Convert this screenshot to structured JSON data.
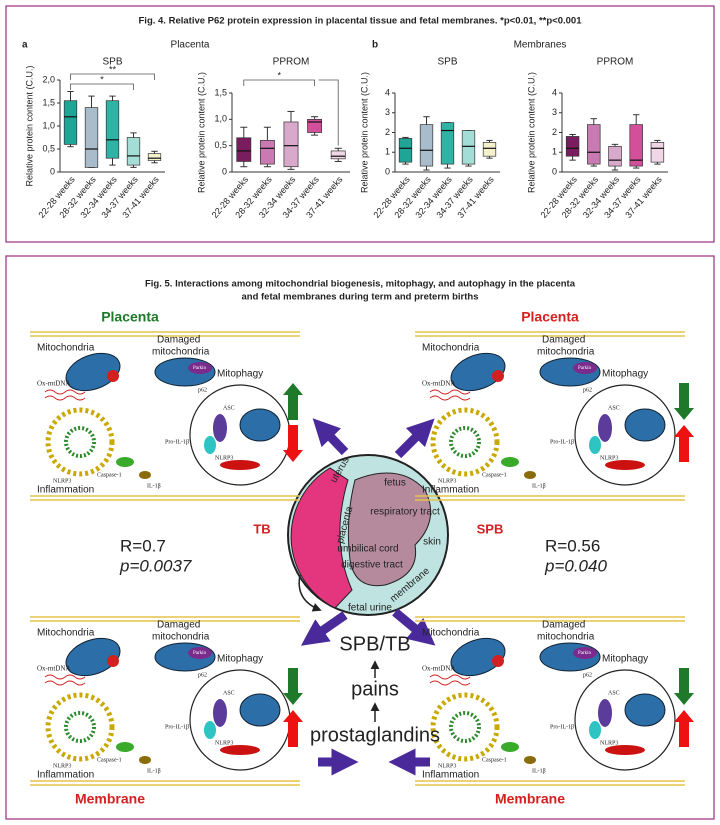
{
  "fig4": {
    "title": "Fig. 4. Relative P62 protein expression in placental tissue and fetal membranes. *p<0.01, **p<0.001",
    "panels": [
      {
        "letter": "a",
        "title": "Placenta",
        "charts": [
          {
            "type": "box",
            "title": "SPB",
            "ylabel": "Relative protein content (C.U.)",
            "categories": [
              "22-28 weeks",
              "28-32 weeks",
              "32-34 weeks",
              "34-37 weeks",
              "37-41 weeks"
            ],
            "ylim": [
              0,
              2
            ],
            "yticks": [
              0,
              {
                "value": 0.5,
                "label": "0,5"
              },
              {
                "value": 1,
                "label": "1,0"
              },
              {
                "value": 1.5,
                "label": "1,5"
              },
              {
                "value": 2,
                "label": "2,0"
              }
            ],
            "boxes": [
              {
                "color": "#1fa596",
                "min": 0.55,
                "q1": 0.6,
                "median": 1.2,
                "q3": 1.55,
                "max": 1.75
              },
              {
                "color": "#a8bccb",
                "min": 0.1,
                "q1": 0.1,
                "median": 0.5,
                "q3": 1.4,
                "max": 1.65
              },
              {
                "color": "#2fb3a4",
                "min": 0.15,
                "q1": 0.3,
                "median": 0.7,
                "q3": 1.55,
                "max": 1.65
              },
              {
                "color": "#a3ddd6",
                "min": 0.1,
                "q1": 0.15,
                "median": 0.35,
                "q3": 0.75,
                "max": 0.85
              },
              {
                "color": "#f3f0cc",
                "min": 0.2,
                "q1": 0.25,
                "median": 0.3,
                "q3": 0.4,
                "max": 0.45
              }
            ],
            "annotations": [
              "**",
              "*"
            ]
          },
          {
            "type": "box",
            "title": "PPROM",
            "ylabel": "Relative protein content (C.U.)",
            "categories": [
              "22-28 weeks",
              "28-32 weeks",
              "32-34 weeks",
              "34-37 weeks",
              "37-41 weeks"
            ],
            "ylim": [
              0,
              1.5
            ],
            "yticks": [
              0,
              {
                "value": 0.5,
                "label": "0,5"
              },
              {
                "value": 1,
                "label": "1,0"
              },
              {
                "value": 1.5,
                "label": "1,5"
              }
            ],
            "boxes": [
              {
                "color": "#7a1d5e",
                "min": 0.1,
                "q1": 0.2,
                "median": 0.4,
                "q3": 0.65,
                "max": 0.85
              },
              {
                "color": "#c97ab3",
                "min": 0.1,
                "q1": 0.15,
                "median": 0.45,
                "q3": 0.6,
                "max": 0.85
              },
              {
                "color": "#d9a9cc",
                "min": 0.05,
                "q1": 0.1,
                "median": 0.5,
                "q3": 0.95,
                "max": 1.15
              },
              {
                "color": "#d2509a",
                "min": 0.7,
                "q1": 0.75,
                "median": 0.95,
                "q3": 1,
                "max": 1.05
              },
              {
                "color": "#f1d6e7",
                "min": 0.2,
                "q1": 0.25,
                "median": 0.3,
                "q3": 0.4,
                "max": 0.45
              }
            ],
            "annotations": [
              "*"
            ]
          }
        ]
      },
      {
        "letter": "b",
        "title": "Membranes",
        "charts": [
          {
            "type": "box",
            "title": "SPB",
            "ylabel": "Relative protein content (C.U.)",
            "categories": [
              "22-28 weeks",
              "28-32 weeks",
              "32-34 weeks",
              "34-37 weeks",
              "37-41 weeks"
            ],
            "ylim": [
              0,
              4
            ],
            "yticks": [
              0,
              1,
              2,
              3,
              4
            ],
            "boxes": [
              {
                "color": "#1fa596",
                "min": 0.4,
                "q1": 0.5,
                "median": 1.2,
                "q3": 1.7,
                "max": 1.75
              },
              {
                "color": "#a8bccb",
                "min": 0.1,
                "q1": 0.3,
                "median": 1.1,
                "q3": 2.4,
                "max": 2.8
              },
              {
                "color": "#2fb3a4",
                "min": 0.2,
                "q1": 0.4,
                "median": 2.1,
                "q3": 2.5,
                "max": 2.5
              },
              {
                "color": "#a3ddd6",
                "min": 0.3,
                "q1": 0.4,
                "median": 1.3,
                "q3": 2.1,
                "max": 2.1
              },
              {
                "color": "#f3f0cc",
                "min": 0.7,
                "q1": 0.8,
                "median": 1.2,
                "q3": 1.5,
                "max": 1.6
              }
            ],
            "annotations": []
          },
          {
            "type": "box",
            "title": "PPROM",
            "ylabel": "Relative protein content (C.U.)",
            "categories": [
              "22-28 weeks",
              "28-32 weeks",
              "32-34 weeks",
              "34-37 weeks",
              "37-41 weeks"
            ],
            "ylim": [
              0,
              4
            ],
            "yticks": [
              0,
              1,
              2,
              3,
              4
            ],
            "boxes": [
              {
                "color": "#7a1d5e",
                "min": 0.6,
                "q1": 0.8,
                "median": 1.2,
                "q3": 1.8,
                "max": 1.9
              },
              {
                "color": "#c97ab3",
                "min": 0.3,
                "q1": 0.4,
                "median": 1,
                "q3": 2.4,
                "max": 2.7
              },
              {
                "color": "#d9a9cc",
                "min": 0.1,
                "q1": 0.3,
                "median": 0.6,
                "q3": 1.3,
                "max": 1.4
              },
              {
                "color": "#d2509a",
                "min": 0.2,
                "q1": 0.3,
                "median": 0.6,
                "q3": 2.4,
                "max": 2.9
              },
              {
                "color": "#f1d6e7",
                "min": 0.4,
                "q1": 0.5,
                "median": 1.2,
                "q3": 1.5,
                "max": 1.6
              }
            ],
            "annotations": []
          }
        ]
      }
    ]
  },
  "fig5": {
    "title": [
      "Fig. 5. Interactions among mitochondrial biogenesis, mitophagy, and autophagy in the placenta",
      "and fetal membranes during term and preterm births"
    ],
    "panels": [
      {
        "heading": "Placenta",
        "mitochondria": "Mitochondria",
        "damaged": [
          "Damaged",
          "mitochondria"
        ],
        "mitophagy": "Mitophagy",
        "ox_mtdna": "Ox-mtDNA",
        "inflammation": "Inflammation",
        "nlrp3": "NLRP3",
        "parkin": "Parkin",
        "p62": "p62",
        "asc": "ASC",
        "nlrp3_b": "NLRP3",
        "pro_il": "Pro-IL-1β",
        "caspase": "Caspase-1",
        "il": "IL-1β"
      },
      {
        "heading": "Placenta",
        "mitochondria": "Mitochondria",
        "damaged": [
          "Damaged",
          "mitochondria"
        ],
        "mitophagy": "Mitophagy",
        "ox_mtdna": "Ox-mtDNA",
        "inflammation": "Inflammation",
        "nlrp3": "NLRP3",
        "parkin": "Parkin",
        "p62": "p62",
        "asc": "ASC",
        "nlrp3_b": "NLRP3",
        "pro_il": "Pro-IL-1β",
        "caspase": "Caspase-1",
        "il": "IL-1β"
      },
      {
        "heading": "Membrane",
        "mitochondria": "Mitochondria",
        "damaged": [
          "Damaged",
          "mitochondria"
        ],
        "mitophagy": "Mitophagy",
        "ox_mtdna": "Ox-mtDNA",
        "inflammation": "Inflammation",
        "nlrp3": "NLRP3",
        "parkin": "Parkin",
        "p62": "p62",
        "asc": "ASC",
        "nlrp3_b": "NLRP3",
        "pro_il": "Pro-IL-1β",
        "caspase": "Caspase-1",
        "il": "IL-1β"
      },
      {
        "heading": "Membrane",
        "mitochondria": "Mitochondria",
        "damaged": [
          "Damaged",
          "mitochondria"
        ],
        "mitophagy": "Mitophagy",
        "ox_mtdna": "Ox-mtDNA",
        "inflammation": "Inflammation",
        "nlrp3": "NLRP3",
        "parkin": "Parkin",
        "p62": "p62",
        "asc": "ASC",
        "nlrp3_b": "NLRP3",
        "pro_il": "Pro-IL-1β",
        "caspase": "Caspase-1",
        "il": "IL-1β"
      }
    ],
    "left": {
      "label": "TB",
      "r": "R=0.7",
      "p": "p=0.0037"
    },
    "right": {
      "label": "SPB",
      "r": "R=0.56",
      "p": "p=0.040"
    },
    "center": {
      "uterus": "uterus",
      "fetus": "fetus",
      "placenta": "placenta",
      "respiratory": "respiratory tract",
      "skin": "skin",
      "cord": "umbilical cord",
      "digestive": "digestive tract",
      "membrane": "membrane",
      "urine": "fetal urine"
    },
    "chain": [
      "SPB/TB",
      "pains",
      "prostaglandins"
    ]
  }
}
